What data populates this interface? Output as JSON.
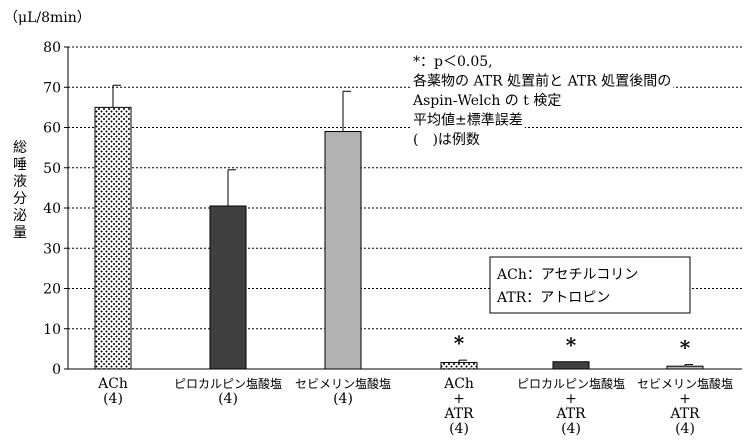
{
  "chart_data": {
    "type": "bar",
    "unit_label": "（μL/8min）",
    "ylabel_chars": [
      "総",
      "唾",
      "液",
      "分",
      "泌",
      "量"
    ],
    "ylim": [
      0,
      80
    ],
    "yticks": [
      "0",
      "10",
      "20",
      "30",
      "40",
      "50",
      "60",
      "70",
      "80"
    ],
    "grid": true,
    "categories": [
      [
        "ACh",
        "(4)"
      ],
      [
        "ピロカルピン塩酸塩",
        "(4)"
      ],
      [
        "セビメリン塩酸塩",
        "(4)"
      ],
      [
        "ACh",
        "+",
        "ATR",
        "(4)"
      ],
      [
        "ピロカルピン塩酸塩",
        "+",
        "ATR",
        "(4)"
      ],
      [
        "セビメリン塩酸塩",
        "+",
        "ATR",
        "(4)"
      ]
    ],
    "values": [
      65,
      40.5,
      59,
      1.6,
      1.8,
      0.7
    ],
    "errors": [
      5.5,
      9,
      10,
      0.6,
      0,
      0.4
    ],
    "fills": [
      "dots",
      "#404040",
      "#b3b3b3",
      "dots",
      "#404040",
      "#b3b3b3"
    ],
    "significance": [
      "",
      "",
      "",
      "*",
      "*",
      "*"
    ],
    "annotation": [
      "*：p＜0.05,",
      "各薬物の ATR 処置前と ATR 処置後間の",
      "Aspin‑Welch の t 検定",
      "平均値±標準誤差",
      "(　)は例数"
    ],
    "legend_box": [
      "ACh：アセチルコリン",
      "ATR：アトロピン"
    ]
  }
}
